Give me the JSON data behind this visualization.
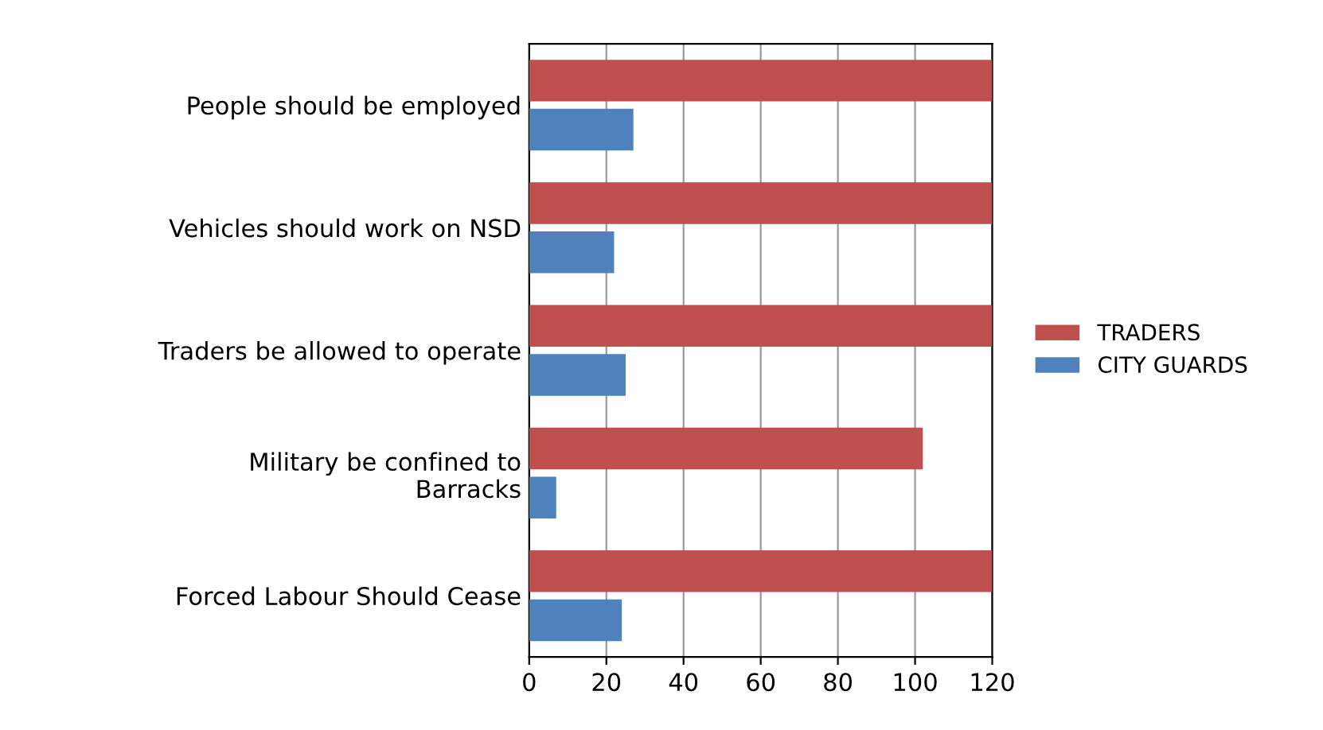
{
  "chart_data": {
    "type": "bar",
    "orientation": "horizontal",
    "categories": [
      "People should be employed",
      "Vehicles should work on NSD",
      "Traders be allowed to operate",
      "Military be confined to\nBarracks",
      "Forced Labour Should Cease"
    ],
    "series": [
      {
        "name": "TRADERS",
        "color": "#c0504d",
        "values": [
          120,
          120,
          120,
          102,
          120
        ]
      },
      {
        "name": "CITY GUARDS",
        "color": "#4f81bd",
        "values": [
          27,
          22,
          25,
          7,
          24
        ]
      }
    ],
    "xlim": [
      0,
      120
    ],
    "xticks": [
      0,
      20,
      40,
      60,
      80,
      100,
      120
    ],
    "grid": "x",
    "legend": "right"
  }
}
